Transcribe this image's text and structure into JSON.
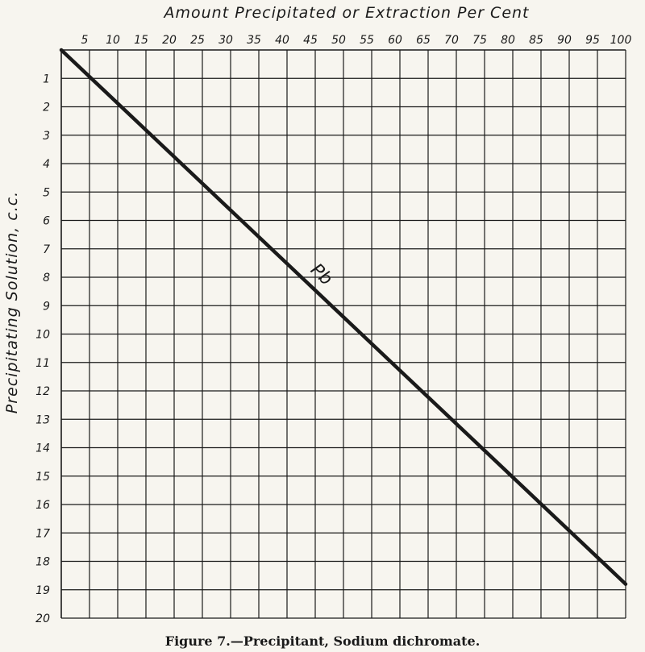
{
  "chart_data": {
    "type": "line",
    "x_axis_title": "Amount Precipitated or Extraction Per Cent",
    "y_axis_title": "Precipitating Solution, c.c.",
    "x_ticks": [
      5,
      10,
      15,
      20,
      25,
      30,
      35,
      40,
      45,
      50,
      55,
      60,
      65,
      70,
      75,
      80,
      85,
      90,
      95,
      100
    ],
    "y_ticks": [
      1,
      2,
      3,
      4,
      5,
      6,
      7,
      8,
      9,
      10,
      11,
      12,
      13,
      14,
      15,
      16,
      17,
      18,
      19,
      20
    ],
    "xlim": [
      0,
      100
    ],
    "ylim": [
      0,
      20
    ],
    "y_inverted": true,
    "x_axis_position": "top",
    "grid": true,
    "series": [
      {
        "name": "Pb",
        "x": [
          0,
          100
        ],
        "y": [
          0,
          18.8
        ],
        "color": "#1a1a1a"
      }
    ],
    "series_label": "Pb",
    "caption": "Figure 7.—Precipitant, Sodium dichromate."
  }
}
